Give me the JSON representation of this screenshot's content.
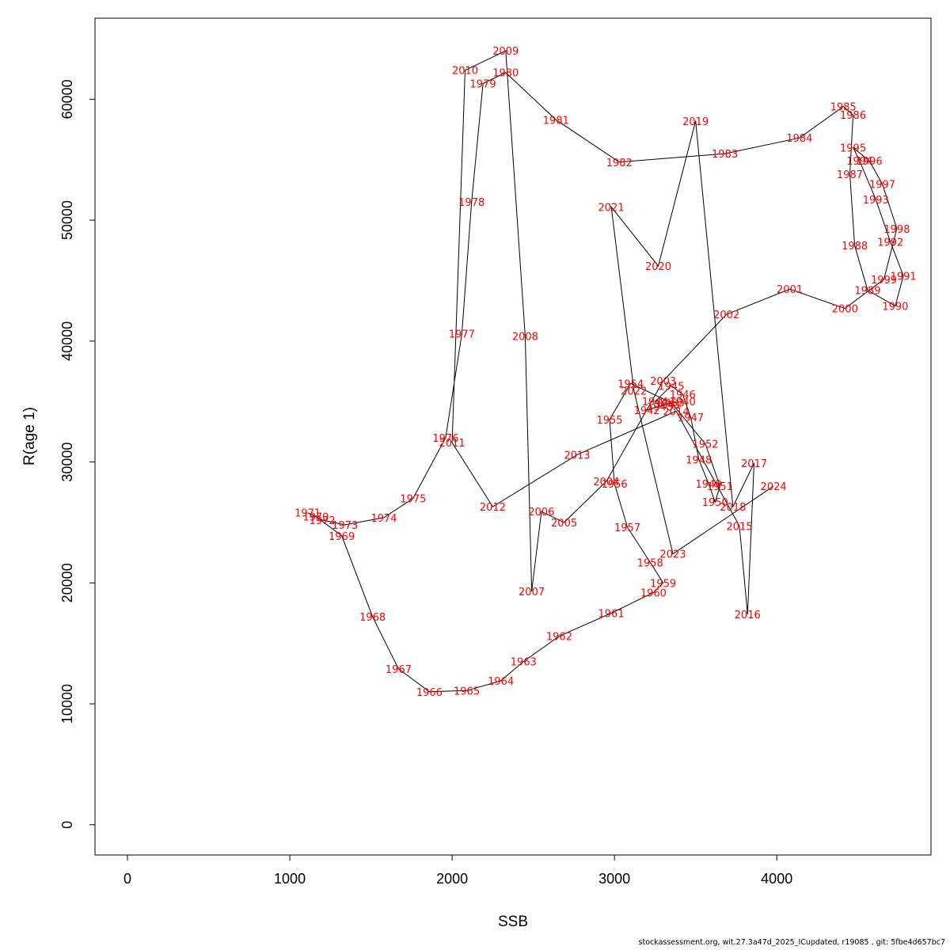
{
  "footer": "stockassessment.org, wit.27.3a47d_2025_ICupdated, r19085 , git: 5fbe4d657bc7",
  "chart_data": {
    "type": "line",
    "xlabel": "SSB",
    "ylabel": "R(age 1)",
    "xlim": [
      -200,
      4950
    ],
    "ylim": [
      -2500,
      66700
    ],
    "xticks": [
      0,
      1000,
      2000,
      3000,
      4000
    ],
    "yticks": [
      0,
      10000,
      20000,
      30000,
      40000,
      50000,
      60000
    ],
    "line_color": "#000000",
    "label_color": "#ff0000",
    "points": [
      {
        "year": "1940",
        "x": 3420,
        "y": 35000
      },
      {
        "year": "1941",
        "x": 3330,
        "y": 34800
      },
      {
        "year": "1942",
        "x": 3200,
        "y": 34300
      },
      {
        "year": "1943",
        "x": 3280,
        "y": 34600
      },
      {
        "year": "1944",
        "x": 3250,
        "y": 35000
      },
      {
        "year": "1945",
        "x": 3350,
        "y": 36300
      },
      {
        "year": "1946",
        "x": 3420,
        "y": 35600
      },
      {
        "year": "1947",
        "x": 3470,
        "y": 33700
      },
      {
        "year": "1948",
        "x": 3520,
        "y": 30200
      },
      {
        "year": "1949",
        "x": 3580,
        "y": 28200
      },
      {
        "year": "1950",
        "x": 3620,
        "y": 26700
      },
      {
        "year": "1951",
        "x": 3650,
        "y": 28000
      },
      {
        "year": "1952",
        "x": 3560,
        "y": 31500
      },
      {
        "year": "1953",
        "x": 3350,
        "y": 34900
      },
      {
        "year": "1954",
        "x": 3100,
        "y": 36500
      },
      {
        "year": "1955",
        "x": 2970,
        "y": 33500
      },
      {
        "year": "1956",
        "x": 3000,
        "y": 28200
      },
      {
        "year": "1957",
        "x": 3080,
        "y": 24600
      },
      {
        "year": "1958",
        "x": 3220,
        "y": 21700
      },
      {
        "year": "1959",
        "x": 3300,
        "y": 20000
      },
      {
        "year": "1960",
        "x": 3240,
        "y": 19200
      },
      {
        "year": "1961",
        "x": 2980,
        "y": 17500
      },
      {
        "year": "1962",
        "x": 2660,
        "y": 15600
      },
      {
        "year": "1963",
        "x": 2440,
        "y": 13500
      },
      {
        "year": "1964",
        "x": 2300,
        "y": 11900
      },
      {
        "year": "1965",
        "x": 2090,
        "y": 11100
      },
      {
        "year": "1966",
        "x": 1860,
        "y": 11000
      },
      {
        "year": "1967",
        "x": 1670,
        "y": 12900
      },
      {
        "year": "1968",
        "x": 1510,
        "y": 17200
      },
      {
        "year": "1969",
        "x": 1320,
        "y": 23900
      },
      {
        "year": "1970",
        "x": 1160,
        "y": 25500
      },
      {
        "year": "1971",
        "x": 1110,
        "y": 25800
      },
      {
        "year": "1972",
        "x": 1200,
        "y": 25200
      },
      {
        "year": "1973",
        "x": 1340,
        "y": 24800
      },
      {
        "year": "1974",
        "x": 1580,
        "y": 25400
      },
      {
        "year": "1975",
        "x": 1760,
        "y": 27000
      },
      {
        "year": "1976",
        "x": 1960,
        "y": 32000
      },
      {
        "year": "1977",
        "x": 2060,
        "y": 40600
      },
      {
        "year": "1978",
        "x": 2120,
        "y": 51500
      },
      {
        "year": "1979",
        "x": 2190,
        "y": 61300
      },
      {
        "year": "1980",
        "x": 2330,
        "y": 62200
      },
      {
        "year": "1981",
        "x": 2640,
        "y": 58300
      },
      {
        "year": "1982",
        "x": 3030,
        "y": 54800
      },
      {
        "year": "1983",
        "x": 3680,
        "y": 55500
      },
      {
        "year": "1984",
        "x": 4140,
        "y": 56800
      },
      {
        "year": "1985",
        "x": 4410,
        "y": 59400
      },
      {
        "year": "1986",
        "x": 4470,
        "y": 58700
      },
      {
        "year": "1987",
        "x": 4450,
        "y": 53800
      },
      {
        "year": "1988",
        "x": 4480,
        "y": 47900
      },
      {
        "year": "1989",
        "x": 4560,
        "y": 44200
      },
      {
        "year": "1990",
        "x": 4730,
        "y": 42900
      },
      {
        "year": "1991",
        "x": 4780,
        "y": 45400
      },
      {
        "year": "1992",
        "x": 4700,
        "y": 48200
      },
      {
        "year": "1993",
        "x": 4610,
        "y": 51700
      },
      {
        "year": "1994",
        "x": 4510,
        "y": 54900
      },
      {
        "year": "1995",
        "x": 4470,
        "y": 56000
      },
      {
        "year": "1996",
        "x": 4570,
        "y": 54900
      },
      {
        "year": "1997",
        "x": 4650,
        "y": 53000
      },
      {
        "year": "1998",
        "x": 4740,
        "y": 49300
      },
      {
        "year": "1999",
        "x": 4660,
        "y": 45100
      },
      {
        "year": "2000",
        "x": 4420,
        "y": 42700
      },
      {
        "year": "2001",
        "x": 4080,
        "y": 44300
      },
      {
        "year": "2002",
        "x": 3690,
        "y": 42200
      },
      {
        "year": "2003",
        "x": 3300,
        "y": 36700
      },
      {
        "year": "2004",
        "x": 2950,
        "y": 28400
      },
      {
        "year": "2005",
        "x": 2690,
        "y": 25000
      },
      {
        "year": "2006",
        "x": 2550,
        "y": 25900
      },
      {
        "year": "2007",
        "x": 2490,
        "y": 19300
      },
      {
        "year": "2008",
        "x": 2450,
        "y": 40400
      },
      {
        "year": "2009",
        "x": 2330,
        "y": 64000
      },
      {
        "year": "2010",
        "x": 2080,
        "y": 62400
      },
      {
        "year": "2011",
        "x": 2000,
        "y": 31600
      },
      {
        "year": "2012",
        "x": 2250,
        "y": 26300
      },
      {
        "year": "2013",
        "x": 2770,
        "y": 30600
      },
      {
        "year": "2014",
        "x": 3380,
        "y": 34200
      },
      {
        "year": "2015",
        "x": 3770,
        "y": 24700
      },
      {
        "year": "2016",
        "x": 3820,
        "y": 17400
      },
      {
        "year": "2017",
        "x": 3860,
        "y": 29900
      },
      {
        "year": "2018",
        "x": 3730,
        "y": 26300
      },
      {
        "year": "2019",
        "x": 3500,
        "y": 58200
      },
      {
        "year": "2020",
        "x": 3270,
        "y": 46200
      },
      {
        "year": "2021",
        "x": 2980,
        "y": 51100
      },
      {
        "year": "2022",
        "x": 3120,
        "y": 35900
      },
      {
        "year": "2023",
        "x": 3360,
        "y": 22400
      },
      {
        "year": "2024",
        "x": 3980,
        "y": 28000
      }
    ]
  }
}
